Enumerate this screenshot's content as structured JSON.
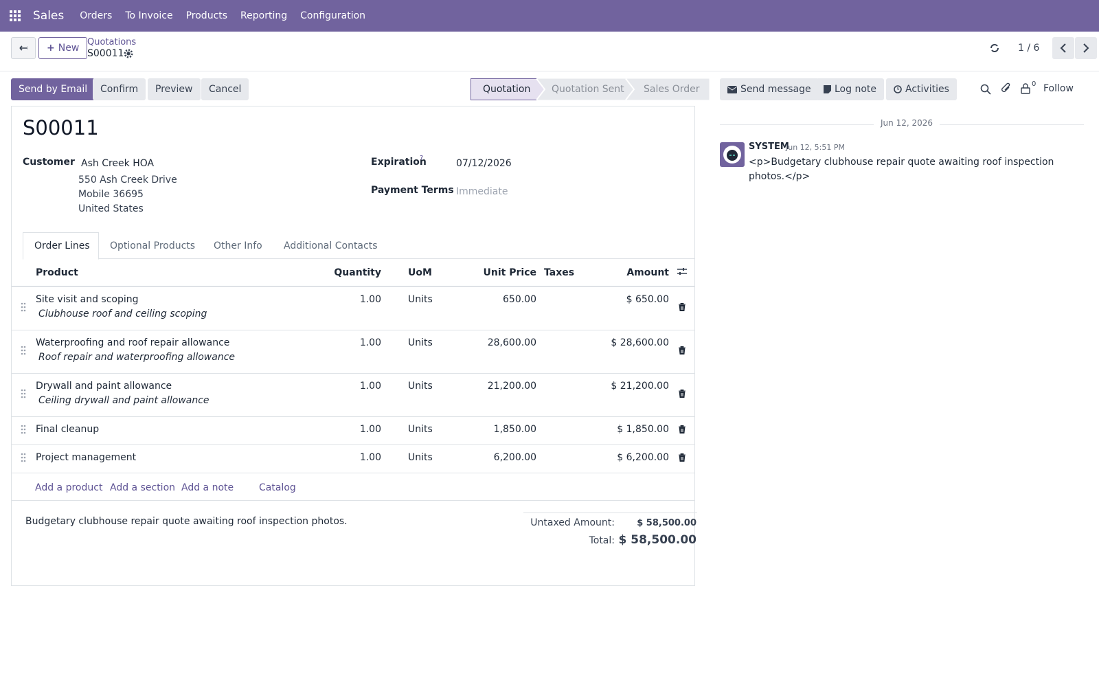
{
  "navbar": {
    "app": "Sales",
    "menu": [
      "Orders",
      "To Invoice",
      "Products",
      "Reporting",
      "Configuration"
    ]
  },
  "control_panel": {
    "new": "New",
    "breadcrumb": "Quotations",
    "record": "S00011",
    "pager": "1 / 6"
  },
  "actions": [
    "Send by Email",
    "Confirm",
    "Preview",
    "Cancel"
  ],
  "statusbar": [
    "Quotation",
    "Quotation Sent",
    "Sales Order"
  ],
  "chatter_buttons": [
    "Send message",
    "Log note",
    "Activities"
  ],
  "follow": {
    "count": 0,
    "label": "Follow"
  },
  "form": {
    "name": "S00011",
    "customer_label": "Customer",
    "customer": [
      "Ash Creek HOA",
      "550 Ash Creek Drive",
      "Mobile 36695",
      "United States"
    ],
    "expiration_label": "Expiration",
    "expiration_help": "?",
    "expiration": "07/12/2026",
    "payment_terms_label": "Payment Terms",
    "payment_terms": "Immediate"
  },
  "tabs": [
    "Order Lines",
    "Optional Products",
    "Other Info",
    "Additional Contacts"
  ],
  "table": {
    "headers": [
      "Product",
      "Quantity",
      "UoM",
      "Unit Price",
      "Taxes",
      "Amount"
    ],
    "rows": [
      {
        "product": "Site visit and scoping",
        "description": "Clubhouse roof and ceiling scoping",
        "quantity": "1.00",
        "uom": "Units",
        "unit_price": "650.00",
        "amount": "$ 650.00"
      },
      {
        "product": "Waterproofing and roof repair allowance",
        "description": "Roof repair and waterproofing allowance",
        "quantity": "1.00",
        "uom": "Units",
        "unit_price": "28,600.00",
        "amount": "$ 28,600.00"
      },
      {
        "product": "Drywall and paint allowance",
        "description": "Ceiling drywall and paint allowance",
        "quantity": "1.00",
        "uom": "Units",
        "unit_price": "21,200.00",
        "amount": "$ 21,200.00"
      },
      {
        "product": "Final cleanup",
        "quantity": "1.00",
        "uom": "Units",
        "unit_price": "1,850.00",
        "amount": "$ 1,850.00"
      },
      {
        "product": "Project management",
        "quantity": "1.00",
        "uom": "Units",
        "unit_price": "6,200.00",
        "amount": "$ 6,200.00"
      }
    ]
  },
  "table_actions": [
    "Add a product",
    "Add a section",
    "Add a note",
    "Catalog"
  ],
  "note": "Budgetary clubhouse repair quote awaiting roof inspection photos.",
  "totals": {
    "untaxed_label": "Untaxed Amount:",
    "untaxed": "$ 58,500.00",
    "total_label": "Total:",
    "total": "$ 58,500.00"
  },
  "chatter": {
    "date": "Jun 12, 2026",
    "author": "SYSTEM",
    "time": "Jun 12, 5:51 PM",
    "body": "<p>Budgetary clubhouse repair quote awaiting roof inspection photos.</p>"
  }
}
